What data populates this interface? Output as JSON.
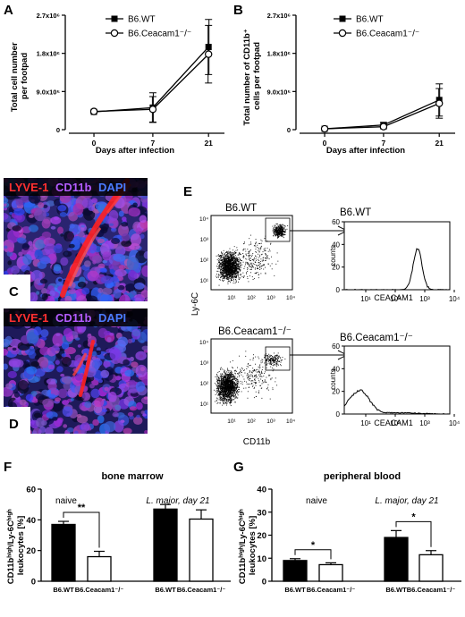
{
  "panels": {
    "A": {
      "letter": "A",
      "ylabel_line1": "Total cell number",
      "ylabel_line2": "per footpad",
      "xlabel": "Days after infection",
      "yticks": [
        "0",
        "9.0x10⁵",
        "1.8x10⁶",
        "2.7x10⁶"
      ],
      "xticks": [
        "0",
        "7",
        "21"
      ],
      "legend": [
        "B6.WT",
        "B6.Ceacam1⁻/⁻"
      ]
    },
    "B": {
      "letter": "B",
      "ylabel_line1": "Total number of CD11b⁺",
      "ylabel_line2": "cells per footpad",
      "xlabel": "Days after infection",
      "yticks": [
        "0",
        "9.0x10⁵",
        "1.8x10⁶",
        "2.7x10⁶"
      ],
      "xticks": [
        "0",
        "7",
        "21"
      ],
      "legend": [
        "B6.WT",
        "B6.Ceacam1⁻/⁻"
      ]
    },
    "C": {
      "letter": "C",
      "stain_red": "LYVE-1",
      "stain_purple": "CD11b",
      "stain_blue": "DAPI"
    },
    "D": {
      "letter": "D",
      "stain_red": "LYVE-1",
      "stain_purple": "CD11b",
      "stain_blue": "DAPI"
    },
    "E": {
      "letter": "E",
      "top_title": "B6.WT",
      "bottom_title": "B6.Ceacam1⁻/⁻",
      "hist_top_title": "B6.WT",
      "hist_bottom_title": "B6.Ceacam1⁻/⁻",
      "ylabel": "Ly-6C",
      "xlabel": "CD11b",
      "hist_ylabel": "counts",
      "hist_xlabel": "CEACAM1",
      "hist_yticks": [
        "0",
        "20",
        "40",
        "60"
      ]
    },
    "F": {
      "letter": "F",
      "title": "bone marrow",
      "ylabel_line1": "CD11bʰⁱᵍʰ/Ly-6Cʰⁱᵍʰ",
      "ylabel_line2": "leukocytes [%]",
      "yticks": [
        "0",
        "20",
        "40",
        "60"
      ],
      "group1": "naive",
      "group2": "L. major, day 21",
      "sig": "**",
      "xlabels": [
        "B6.WT",
        "B6.Ceacam1⁻/⁻",
        "B6.WT",
        "B6.Ceacam1⁻/⁻"
      ]
    },
    "G": {
      "letter": "G",
      "title": "peripheral blood",
      "ylabel_line1": "CD11bʰⁱᵍʰ/Ly-6Cʰⁱᵍʰ",
      "ylabel_line2": "leukocytes [%]",
      "yticks": [
        "0",
        "10",
        "20",
        "30",
        "40"
      ],
      "group1": "naive",
      "group2": "L. major, day 21",
      "sig1": "*",
      "sig2": "*",
      "xlabels": [
        "B6.WT",
        "B6.Ceacam1⁻/⁻",
        "B6.WT",
        "B6.Ceacam1⁻/⁻"
      ]
    }
  },
  "chart_data": [
    {
      "panel": "A",
      "type": "line",
      "xlabel": "Days after infection",
      "ylabel": "Total cell number per footpad",
      "x": [
        0,
        7,
        21
      ],
      "ylim": [
        0,
        2700000
      ],
      "series": [
        {
          "name": "B6.WT",
          "values": [
            420000,
            520000,
            1950000
          ],
          "err": [
            30000,
            350000,
            650000
          ],
          "marker": "filled-square"
        },
        {
          "name": "B6.Ceacam1-/-",
          "values": [
            430000,
            480000,
            1780000
          ],
          "err": [
            30000,
            300000,
            680000
          ],
          "marker": "open-circle"
        }
      ]
    },
    {
      "panel": "B",
      "type": "line",
      "xlabel": "Days after infection",
      "ylabel": "Total number of CD11b+ cells per footpad",
      "x": [
        0,
        7,
        21
      ],
      "ylim": [
        0,
        2700000
      ],
      "series": [
        {
          "name": "B6.WT",
          "values": [
            20000,
            110000,
            700000
          ],
          "err": [
            10000,
            60000,
            380000
          ],
          "marker": "filled-square"
        },
        {
          "name": "B6.Ceacam1-/-",
          "values": [
            20000,
            70000,
            620000
          ],
          "err": [
            10000,
            50000,
            350000
          ],
          "marker": "open-circle"
        }
      ]
    },
    {
      "panel": "F",
      "type": "bar",
      "title": "bone marrow",
      "ylabel": "CD11b high / Ly-6C high leukocytes [%]",
      "categories": [
        "B6.WT naive",
        "B6.Ceacam1-/- naive",
        "B6.WT L. major day 21",
        "B6.Ceacam1-/- L. major day 21"
      ],
      "values": [
        37,
        16,
        47,
        40.5
      ],
      "err": [
        2,
        3.5,
        3,
        6
      ],
      "fill": [
        "#000000",
        "#ffffff",
        "#000000",
        "#ffffff"
      ],
      "ylim": [
        0,
        60
      ]
    },
    {
      "panel": "G",
      "type": "bar",
      "title": "peripheral blood",
      "ylabel": "CD11b high / Ly-6C high leukocytes [%]",
      "categories": [
        "B6.WT naive",
        "B6.Ceacam1-/- naive",
        "B6.WT L. major day 21",
        "B6.Ceacam1-/- L. major day 21"
      ],
      "values": [
        9,
        7.2,
        19,
        11.5
      ],
      "err": [
        0.8,
        0.8,
        3,
        1.8
      ],
      "fill": [
        "#000000",
        "#ffffff",
        "#000000",
        "#ffffff"
      ],
      "ylim": [
        0,
        40
      ]
    }
  ]
}
